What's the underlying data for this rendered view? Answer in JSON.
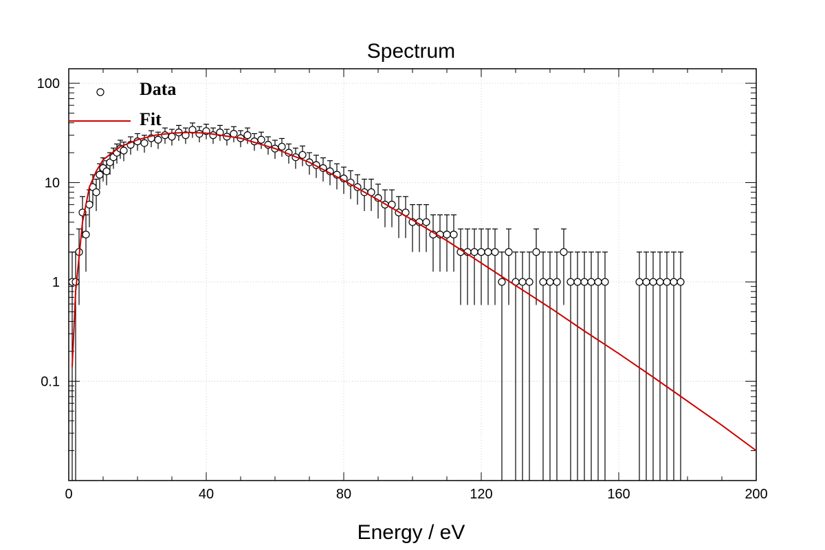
{
  "chart_data": {
    "type": "scatter",
    "title": "Spectrum",
    "xlabel": "Energy / eV",
    "ylabel": "",
    "xlim": [
      0,
      200
    ],
    "ylim": [
      0.01,
      140
    ],
    "yscale": "log",
    "grid": true,
    "legend": {
      "placement": "top-left",
      "entries": [
        "Data",
        "Fit"
      ]
    },
    "x_ticks": [
      0,
      40,
      80,
      120,
      160,
      200
    ],
    "x_tick_labels": [
      "0",
      "40",
      "80",
      "120",
      "160",
      "200"
    ],
    "y_ticks": [
      0.1,
      1,
      10,
      100
    ],
    "y_tick_labels": [
      "0.1",
      "1",
      "10",
      "100"
    ],
    "series": [
      {
        "name": "Data",
        "style": "open-circle-with-errorbars",
        "color": "#000000",
        "x": [
          1,
          2,
          3,
          4,
          5,
          6,
          7,
          8,
          9,
          10,
          11,
          12,
          13,
          14,
          15,
          16,
          18,
          20,
          22,
          24,
          26,
          28,
          30,
          32,
          34,
          36,
          38,
          40,
          42,
          44,
          46,
          48,
          50,
          52,
          54,
          56,
          58,
          60,
          62,
          64,
          66,
          68,
          70,
          72,
          74,
          76,
          78,
          80,
          82,
          84,
          86,
          88,
          90,
          92,
          94,
          96,
          98,
          100,
          102,
          104,
          106,
          108,
          110,
          112,
          114,
          116,
          118,
          120,
          122,
          124,
          126,
          128,
          130,
          132,
          134,
          136,
          138,
          140,
          142,
          144,
          146,
          148,
          150,
          152,
          154,
          156,
          166,
          168,
          170,
          172,
          174,
          176,
          178
        ],
        "y": [
          1,
          1,
          2,
          5,
          3,
          6,
          9,
          8,
          12,
          14,
          13,
          16,
          18,
          20,
          22,
          21,
          24,
          26,
          25,
          28,
          27,
          30,
          29,
          32,
          30,
          34,
          31,
          33,
          30,
          32,
          29,
          31,
          28,
          30,
          26,
          27,
          24,
          22,
          23,
          20,
          18,
          19,
          16,
          15,
          14,
          13,
          12,
          11,
          10,
          9,
          8,
          8,
          7,
          6,
          6,
          5,
          5,
          4,
          4,
          4,
          3,
          3,
          3,
          3,
          2,
          2,
          2,
          2,
          2,
          2,
          1,
          2,
          1,
          1,
          1,
          2,
          1,
          1,
          1,
          2,
          1,
          1,
          1,
          1,
          1,
          1,
          1,
          1,
          1,
          1,
          1,
          1,
          1
        ]
      },
      {
        "name": "Fit",
        "style": "line",
        "color": "#cc0000",
        "x": [
          1,
          2,
          4,
          6,
          8,
          10,
          15,
          20,
          25,
          30,
          35,
          40,
          50,
          60,
          70,
          80,
          90,
          100,
          110,
          120,
          130,
          140,
          150,
          160,
          170,
          180,
          190,
          200
        ],
        "y": [
          0.14,
          0.8,
          4,
          9,
          13,
          17,
          23,
          27,
          30,
          31.5,
          32,
          31.5,
          28,
          22,
          16,
          10.5,
          6.7,
          4.2,
          2.6,
          1.55,
          0.92,
          0.55,
          0.32,
          0.19,
          0.11,
          0.063,
          0.036,
          0.02
        ]
      }
    ]
  },
  "colors": {
    "data": "#000000",
    "fit": "#cc0000",
    "grid": "#c8c8c8",
    "frame": "#000000"
  }
}
